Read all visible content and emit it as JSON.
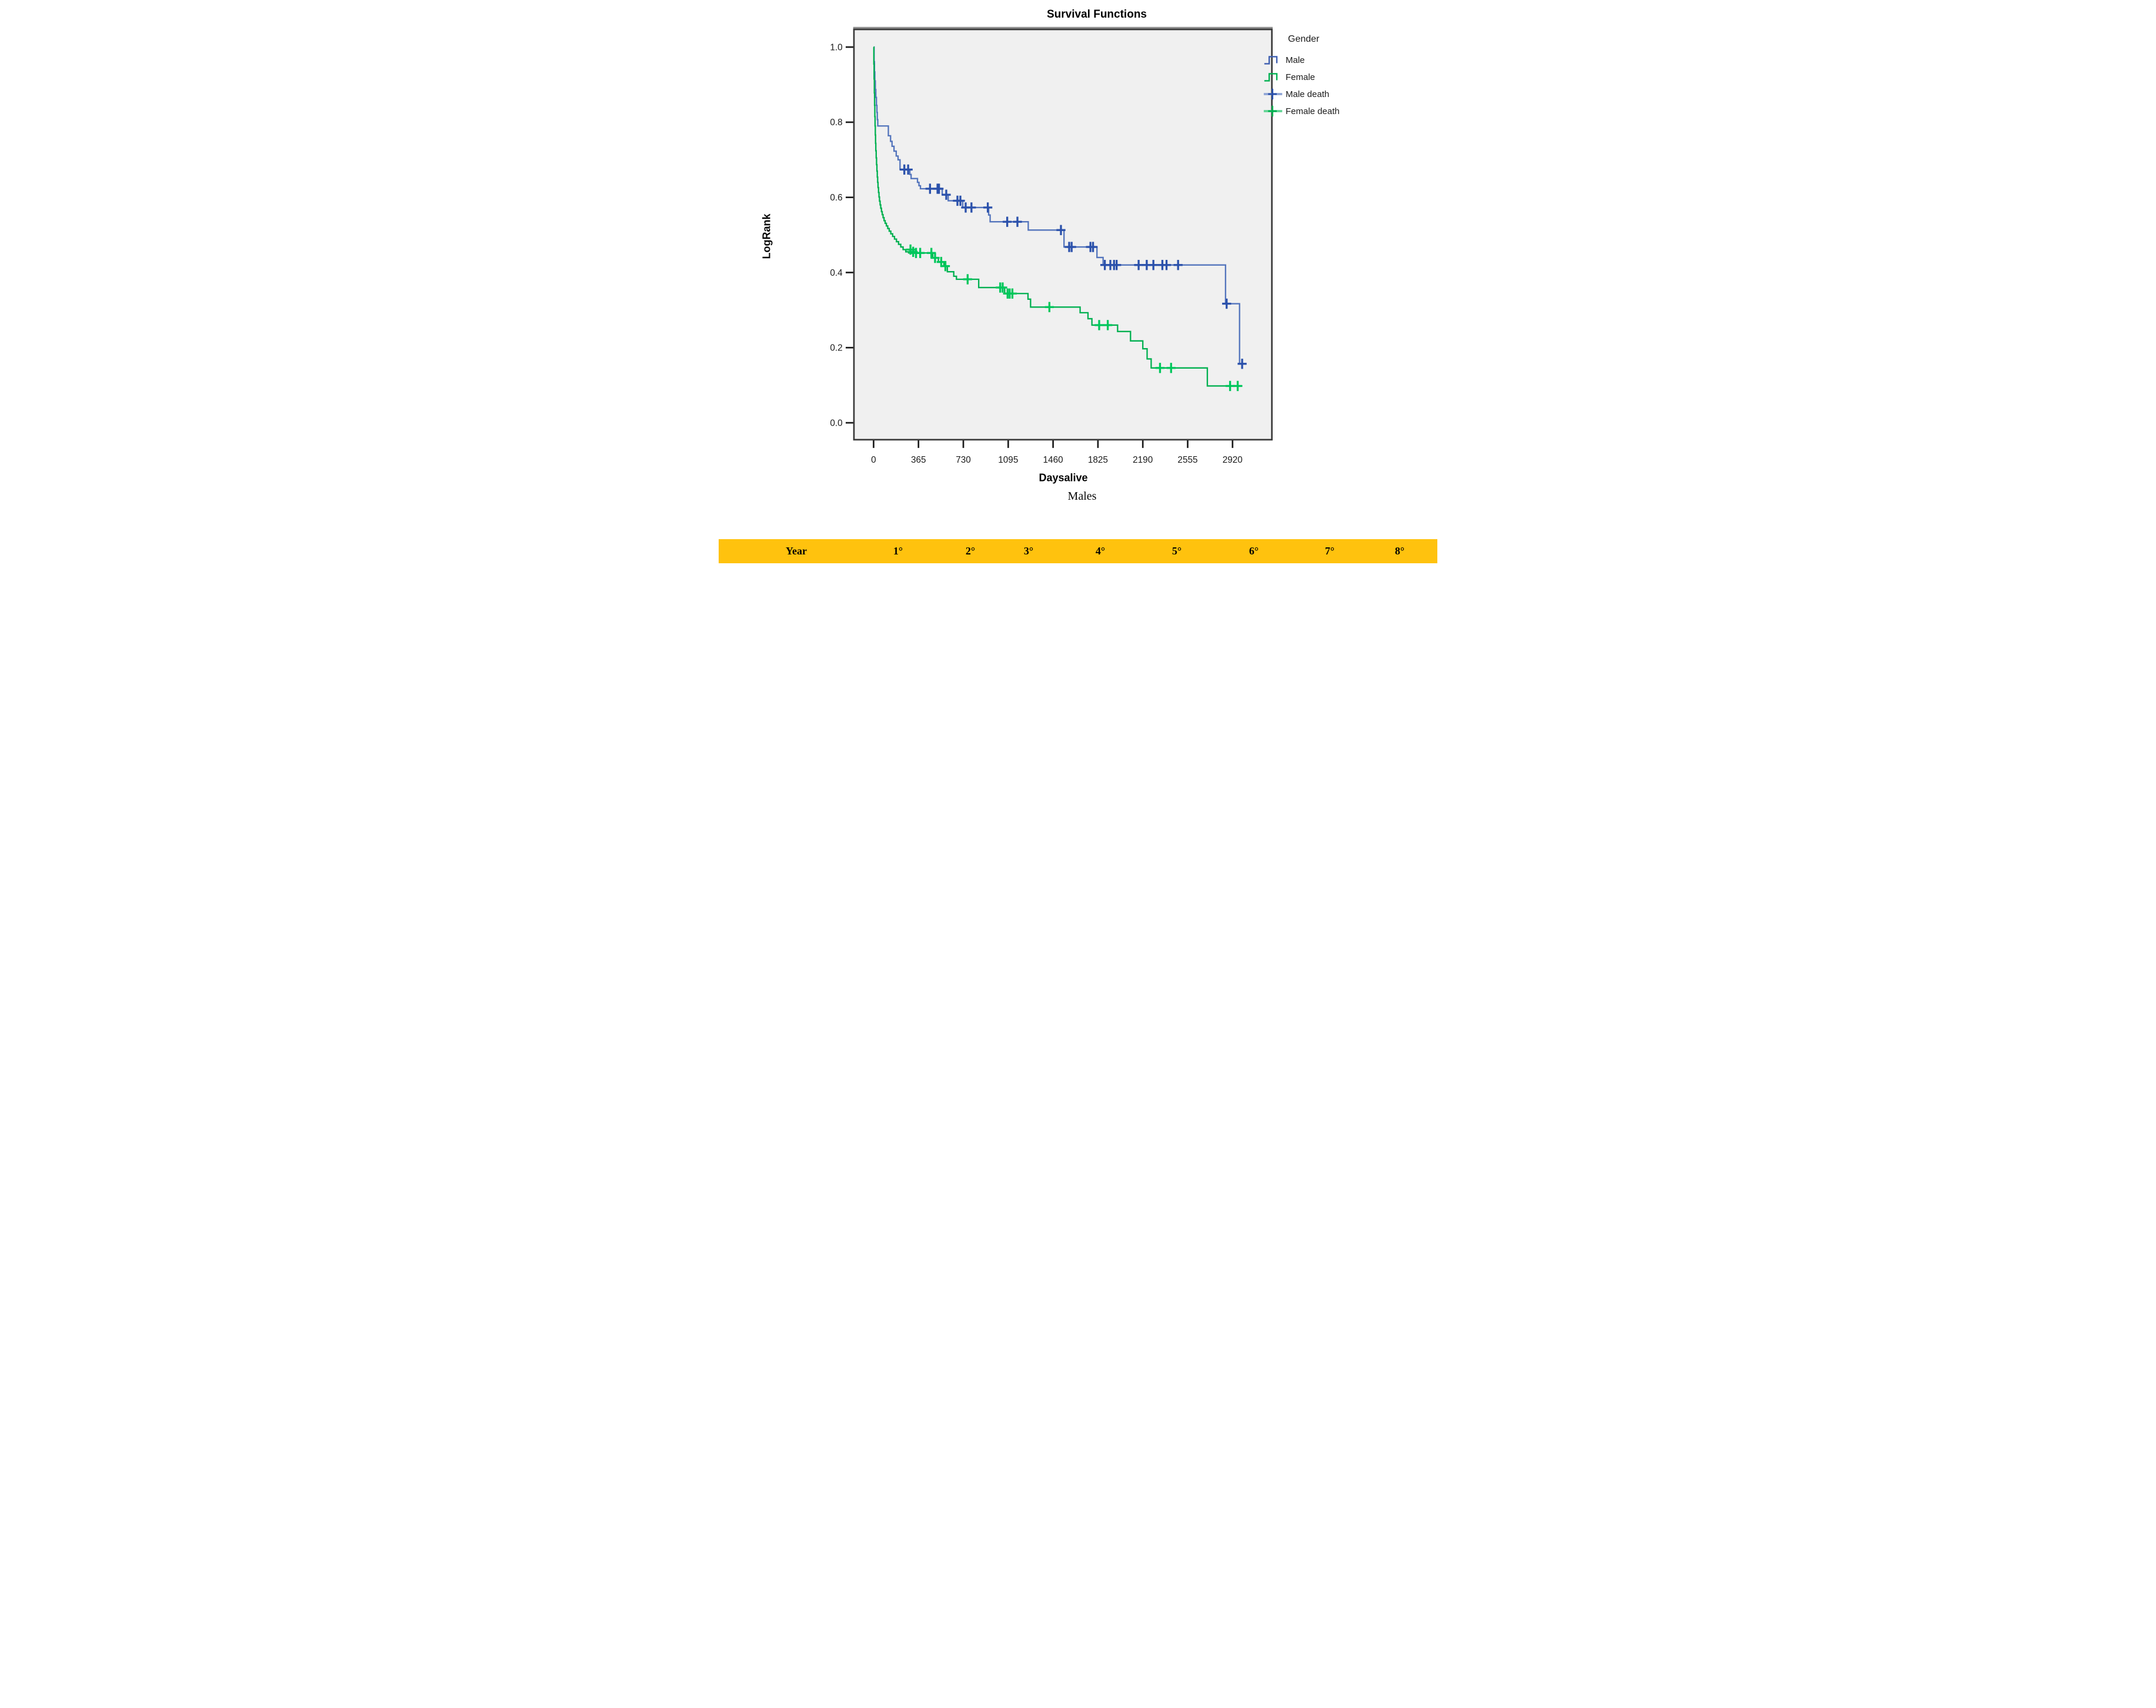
{
  "figure": {
    "caption": "Males"
  },
  "chart_data": {
    "type": "line",
    "subtype": "kaplan-meier-step",
    "title": "Survival Functions",
    "xlabel": "Daysalive",
    "ylabel": "LogRank",
    "x_ticks": [
      0,
      365,
      730,
      1095,
      1460,
      1825,
      2190,
      2555,
      2920
    ],
    "y_ticks": [
      0.0,
      0.2,
      0.4,
      0.6,
      0.8,
      1.0
    ],
    "xlim": [
      -160,
      3240
    ],
    "ylim": [
      -0.045,
      1.047
    ],
    "grid": false,
    "plot_bg": "#F0F0F0",
    "frame_color": "#3A3A3A",
    "frame_top_accent": "#8F8F8F",
    "legend": {
      "title": "Gender",
      "position": "right",
      "entries": [
        {
          "label": "Male",
          "type": "step-line",
          "color": "#3D5EB0"
        },
        {
          "label": "Female",
          "type": "step-line",
          "color": "#00B050"
        },
        {
          "label": "Male death",
          "type": "censor-plus",
          "color": "#2B51AB",
          "line_color": "#8FA5D6"
        },
        {
          "label": "Female death",
          "type": "censor-plus",
          "color": "#00B050",
          "line_color": "#63D495"
        }
      ]
    },
    "series": [
      {
        "name": "Male",
        "color": "#5374BC",
        "censor_color": "#2B51AB",
        "steps": [
          [
            0,
            1.0
          ],
          [
            4,
            0.961
          ],
          [
            7,
            0.934
          ],
          [
            10,
            0.91
          ],
          [
            14,
            0.887
          ],
          [
            18,
            0.866
          ],
          [
            23,
            0.845
          ],
          [
            27,
            0.826
          ],
          [
            30,
            0.807
          ],
          [
            34,
            0.79
          ],
          [
            120,
            0.764
          ],
          [
            138,
            0.749
          ],
          [
            150,
            0.736
          ],
          [
            166,
            0.723
          ],
          [
            184,
            0.71
          ],
          [
            199,
            0.7
          ],
          [
            215,
            0.674
          ],
          [
            295,
            0.661
          ],
          [
            305,
            0.65
          ],
          [
            357,
            0.64
          ],
          [
            369,
            0.631
          ],
          [
            381,
            0.623
          ],
          [
            558,
            0.607
          ],
          [
            607,
            0.591
          ],
          [
            725,
            0.573
          ],
          [
            936,
            0.553
          ],
          [
            948,
            0.535
          ],
          [
            1258,
            0.513
          ],
          [
            1549,
            0.468
          ],
          [
            1817,
            0.44
          ],
          [
            1867,
            0.42
          ],
          [
            2863,
            0.317
          ],
          [
            2977,
            0.157
          ],
          [
            3013,
            0.157
          ]
        ],
        "censors": [
          [
            250,
            0.674
          ],
          [
            281,
            0.674
          ],
          [
            459,
            0.623
          ],
          [
            520,
            0.623
          ],
          [
            532,
            0.623
          ],
          [
            591,
            0.607
          ],
          [
            682,
            0.591
          ],
          [
            706,
            0.591
          ],
          [
            749,
            0.573
          ],
          [
            796,
            0.573
          ],
          [
            929,
            0.573
          ],
          [
            1087,
            0.535
          ],
          [
            1170,
            0.535
          ],
          [
            1524,
            0.513
          ],
          [
            1591,
            0.468
          ],
          [
            1611,
            0.468
          ],
          [
            1764,
            0.468
          ],
          [
            1785,
            0.468
          ],
          [
            1881,
            0.42
          ],
          [
            1926,
            0.42
          ],
          [
            1956,
            0.42
          ],
          [
            1977,
            0.42
          ],
          [
            2156,
            0.42
          ],
          [
            2222,
            0.42
          ],
          [
            2276,
            0.42
          ],
          [
            2349,
            0.42
          ],
          [
            2383,
            0.42
          ],
          [
            2477,
            0.42
          ],
          [
            2872,
            0.317
          ],
          [
            2998,
            0.157
          ]
        ]
      },
      {
        "name": "Female",
        "color": "#00B050",
        "censor_color": "#00C75C",
        "steps": [
          [
            0,
            1.0
          ],
          [
            2,
            0.955
          ],
          [
            4,
            0.915
          ],
          [
            6,
            0.878
          ],
          [
            8,
            0.845
          ],
          [
            10,
            0.815
          ],
          [
            12,
            0.79
          ],
          [
            14,
            0.766
          ],
          [
            16,
            0.744
          ],
          [
            18,
            0.724
          ],
          [
            21,
            0.705
          ],
          [
            24,
            0.687
          ],
          [
            27,
            0.67
          ],
          [
            30,
            0.654
          ],
          [
            33,
            0.64
          ],
          [
            36,
            0.626
          ],
          [
            40,
            0.613
          ],
          [
            44,
            0.601
          ],
          [
            48,
            0.59
          ],
          [
            53,
            0.58
          ],
          [
            58,
            0.571
          ],
          [
            64,
            0.562
          ],
          [
            70,
            0.554
          ],
          [
            77,
            0.546
          ],
          [
            85,
            0.538
          ],
          [
            94,
            0.531
          ],
          [
            104,
            0.524
          ],
          [
            115,
            0.517
          ],
          [
            127,
            0.51
          ],
          [
            140,
            0.503
          ],
          [
            155,
            0.496
          ],
          [
            170,
            0.489
          ],
          [
            186,
            0.482
          ],
          [
            203,
            0.475
          ],
          [
            221,
            0.468
          ],
          [
            240,
            0.461
          ],
          [
            262,
            0.455
          ],
          [
            285,
            0.452
          ],
          [
            481,
            0.439
          ],
          [
            527,
            0.428
          ],
          [
            572,
            0.417
          ],
          [
            600,
            0.402
          ],
          [
            652,
            0.39
          ],
          [
            674,
            0.382
          ],
          [
            855,
            0.36
          ],
          [
            1066,
            0.344
          ],
          [
            1256,
            0.329
          ],
          [
            1277,
            0.308
          ],
          [
            1680,
            0.293
          ],
          [
            1744,
            0.277
          ],
          [
            1776,
            0.26
          ],
          [
            1985,
            0.243
          ],
          [
            2090,
            0.218
          ],
          [
            2190,
            0.197
          ],
          [
            2225,
            0.17
          ],
          [
            2258,
            0.146
          ],
          [
            2715,
            0.098
          ],
          [
            3000,
            0.098
          ]
        ],
        "censors": [
          [
            300,
            0.461
          ],
          [
            322,
            0.455
          ],
          [
            345,
            0.452
          ],
          [
            379,
            0.452
          ],
          [
            470,
            0.452
          ],
          [
            500,
            0.439
          ],
          [
            550,
            0.428
          ],
          [
            584,
            0.417
          ],
          [
            765,
            0.382
          ],
          [
            1030,
            0.36
          ],
          [
            1050,
            0.36
          ],
          [
            1090,
            0.344
          ],
          [
            1107,
            0.344
          ],
          [
            1129,
            0.344
          ],
          [
            1430,
            0.308
          ],
          [
            1835,
            0.26
          ],
          [
            1905,
            0.26
          ],
          [
            2330,
            0.146
          ],
          [
            2420,
            0.146
          ],
          [
            2900,
            0.098
          ],
          [
            2962,
            0.098
          ]
        ]
      }
    ]
  },
  "table_band": {
    "bg": "#FFC20E",
    "text_color": "#000000",
    "cells": [
      "Year",
      "1°",
      "2°",
      "3°",
      "4°",
      "5°",
      "6°",
      "7°",
      "8°"
    ]
  }
}
